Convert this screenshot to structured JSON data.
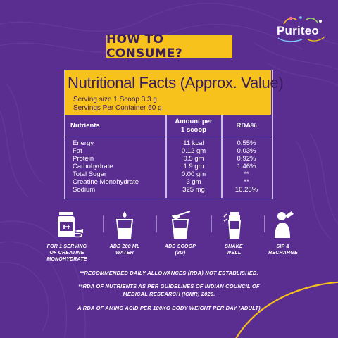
{
  "brand": {
    "name": "Puriteo",
    "accent": "#f7c21b",
    "background": "#5a2d91"
  },
  "headline": "HOW TO CONSUME?",
  "facts": {
    "title": "Nutritional Facts (Approx. Value)",
    "serving_size": "Serving size 1 Scoop  3.3 g",
    "servings_per_container": "Servings Per Container 60 g",
    "headers": {
      "nutrients": "Nutrients",
      "amount_line1": "Amount per",
      "amount_line2": "1 scoop",
      "rda": "RDA%"
    },
    "rows": [
      {
        "name": "Energy",
        "amount": "11 kcal",
        "rda": "0.55%"
      },
      {
        "name": "Fat",
        "amount": "0.12 gm",
        "rda": "0.03%"
      },
      {
        "name": "Protein",
        "amount": "0.5 gm",
        "rda": "0.92%"
      },
      {
        "name": "Carbohydrate",
        "amount": "1.9 gm",
        "rda": "1.46%"
      },
      {
        "name": "Total Sugar",
        "amount": "0.00 gm",
        "rda": "**"
      },
      {
        "name": "Creatine Monohydrate",
        "amount": "3 gm",
        "rda": "**"
      },
      {
        "name": "Sodium",
        "amount": "325 mg",
        "rda": "16.25%"
      }
    ]
  },
  "steps": [
    {
      "icon": "protein-jar-icon",
      "line1": "FOR 1 SERVING",
      "line2": "OF CREATINE",
      "line3": "MONOHYDRATE"
    },
    {
      "icon": "water-glass-icon",
      "line1": "ADD 200 ML",
      "line2": "WATER",
      "line3": ""
    },
    {
      "icon": "scoop-glass-icon",
      "line1": "ADD SCOOP",
      "line2": "(3G)",
      "line3": ""
    },
    {
      "icon": "shaker-icon",
      "line1": "SHAKE",
      "line2": "WELL",
      "line3": ""
    },
    {
      "icon": "person-drinking-icon",
      "line1": "SIP &",
      "line2": "RECHARGE",
      "line3": ""
    }
  ],
  "notes": {
    "note1": "**RECOMMENDED DAILY ALLOWANCES (RDA) NOT ESTABLISHED.",
    "note2_line1": "**RDA OF NUTRIENTS AS PER GUIDELINES OF INDIAN COUNCIL OF",
    "note2_line2": "MEDICAL RESEARCH (ICMR) 2020.",
    "note3": "A RDA OF AMINO ACID PER 100KG BODY WEIGHT PER DAY (ADULT)"
  }
}
